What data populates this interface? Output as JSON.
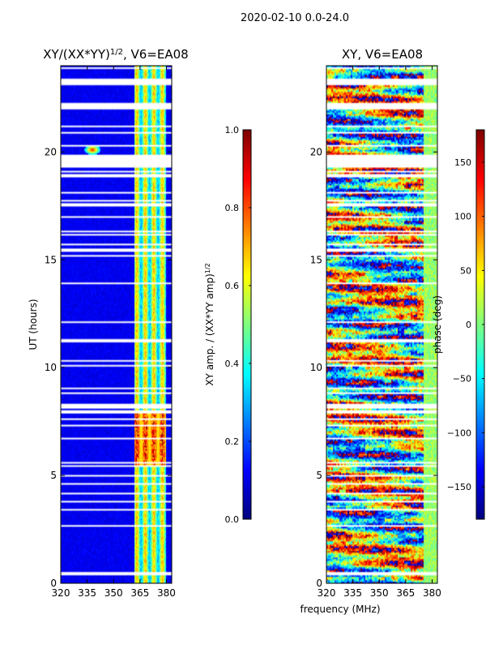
{
  "figure": {
    "suptitle": "2020-02-10 0.0-24.0",
    "shared_xlabel": "frequency (MHz)"
  },
  "chart_data": [
    {
      "type": "heatmap",
      "title_prefix": "XY/(XX*YY)",
      "title_exponent": "1/2",
      "title_suffix": ", V6=EA08",
      "ylabel": "UT (hours)",
      "x_ticks": [
        "320",
        "335",
        "350",
        "365",
        "380"
      ],
      "x_tick_values": [
        320,
        335,
        350,
        365,
        380
      ],
      "xlim": [
        320,
        383
      ],
      "y_ticks": [
        "0",
        "5",
        "10",
        "15",
        "20"
      ],
      "y_tick_values": [
        0,
        5,
        10,
        15,
        20
      ],
      "ylim": [
        0,
        24
      ],
      "colormap": "jet",
      "colorbar": {
        "label_prefix": "XY amp. / (XX*YY amp)",
        "label_exponent": "1/2",
        "ticks": [
          "0.0",
          "0.2",
          "0.4",
          "0.6",
          "0.8",
          "1.0"
        ],
        "tick_values": [
          0.0,
          0.2,
          0.4,
          0.6,
          0.8,
          1.0
        ],
        "range": [
          0.0,
          1.0
        ]
      },
      "gaps_ut_hours": [
        [
          19.3,
          19.9
        ],
        [
          23.1,
          23.3
        ],
        [
          22.1,
          22.25
        ],
        [
          8.2,
          8.35
        ],
        [
          7.9,
          8.0
        ],
        [
          15.4,
          15.55
        ],
        [
          3.35,
          3.45
        ],
        [
          0.4,
          0.5
        ]
      ],
      "features": [
        {
          "name": "band-365-380",
          "x_range": [
            362,
            380
          ],
          "y_range": [
            0,
            24
          ],
          "level": 0.5
        },
        {
          "name": "band-365-380-strong",
          "x_range": [
            362,
            380
          ],
          "y_range": [
            5.5,
            8
          ],
          "level": 0.85
        },
        {
          "name": "blob-335",
          "x": 338,
          "y": 20.1,
          "level": 0.85
        }
      ]
    },
    {
      "type": "heatmap",
      "title": "XY, V6=EA08",
      "x_ticks": [
        "320",
        "335",
        "350",
        "365",
        "380"
      ],
      "x_tick_values": [
        320,
        335,
        350,
        365,
        380
      ],
      "xlim": [
        320,
        383
      ],
      "y_ticks": [
        "0",
        "5",
        "10",
        "15",
        "20"
      ],
      "y_tick_values": [
        0,
        5,
        10,
        15,
        20
      ],
      "ylim": [
        0,
        24
      ],
      "colormap": "jet",
      "colorbar": {
        "label": "phase (deg)",
        "ticks": [
          "−150",
          "−100",
          "−50",
          "0",
          "50",
          "100",
          "150"
        ],
        "tick_values": [
          -150,
          -100,
          -50,
          0,
          50,
          100,
          150
        ],
        "range": [
          -180,
          180
        ]
      },
      "gaps_ut_hours": [
        [
          19.3,
          19.9
        ],
        [
          23.1,
          23.3
        ],
        [
          22.1,
          22.25
        ],
        [
          8.2,
          8.35
        ],
        [
          7.9,
          8.0
        ],
        [
          15.4,
          15.55
        ],
        [
          3.35,
          3.45
        ],
        [
          0.4,
          0.5
        ]
      ]
    }
  ]
}
